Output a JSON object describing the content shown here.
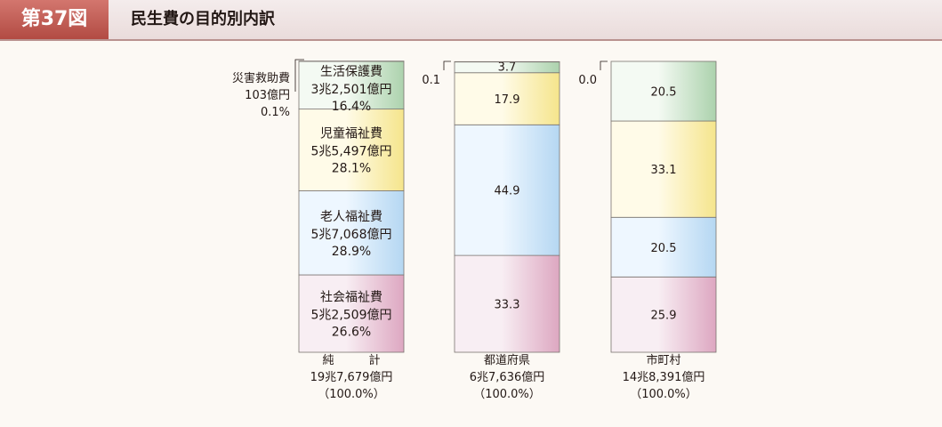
{
  "header": {
    "figure_label": "第37図",
    "title": "民生費の目的別内訳"
  },
  "chart_data": {
    "type": "bar",
    "stacked": true,
    "bars": [
      {
        "name": "純　　　計",
        "total": "19兆7,679億円",
        "total_pct": "（100.0%）",
        "segments": [
          {
            "category": "社会福祉費",
            "amount": "5兆2,509億円",
            "value": 26.6,
            "label": "26.6%"
          },
          {
            "category": "老人福祉費",
            "amount": "5兆7,068億円",
            "value": 28.9,
            "label": "28.9%"
          },
          {
            "category": "児童福祉費",
            "amount": "5兆5,497億円",
            "value": 28.1,
            "label": "28.1%"
          },
          {
            "category": "生活保護費",
            "amount": "3兆2,501億円",
            "value": 16.4,
            "label": "16.4%"
          },
          {
            "category": "災害救助費",
            "amount": "103億円",
            "value": 0.1,
            "label": "0.1%"
          }
        ]
      },
      {
        "name": "都道府県",
        "total": "6兆7,636億円",
        "total_pct": "（100.0%）",
        "segments": [
          {
            "category": "社会福祉費",
            "value": 33.3,
            "label": "33.3"
          },
          {
            "category": "老人福祉費",
            "value": 44.9,
            "label": "44.9"
          },
          {
            "category": "児童福祉費",
            "value": 17.9,
            "label": "17.9"
          },
          {
            "category": "生活保護費",
            "value": 3.7,
            "label": "3.7"
          },
          {
            "category": "災害救助費",
            "value": 0.1,
            "label": "0.1"
          }
        ]
      },
      {
        "name": "市町村",
        "total": "14兆8,391億円",
        "total_pct": "（100.0%）",
        "segments": [
          {
            "category": "社会福祉費",
            "value": 25.9,
            "label": "25.9"
          },
          {
            "category": "老人福祉費",
            "value": 20.5,
            "label": "20.5"
          },
          {
            "category": "児童福祉費",
            "value": 33.1,
            "label": "33.1"
          },
          {
            "category": "生活保護費",
            "value": 20.5,
            "label": "20.5"
          },
          {
            "category": "災害救助費",
            "value": 0.0,
            "label": "0.0"
          }
        ]
      }
    ],
    "colors": {
      "社会福祉費": [
        "#f8eef3",
        "#dda7c1"
      ],
      "老人福祉費": [
        "#eef7ff",
        "#b5d7f2"
      ],
      "児童福祉費": [
        "#fffbe8",
        "#f5e58c"
      ],
      "生活保護費": [
        "#f4faf3",
        "#acd2ad"
      ],
      "災害救助費": [
        "#f3efe8",
        "#cfc6b8"
      ]
    }
  }
}
